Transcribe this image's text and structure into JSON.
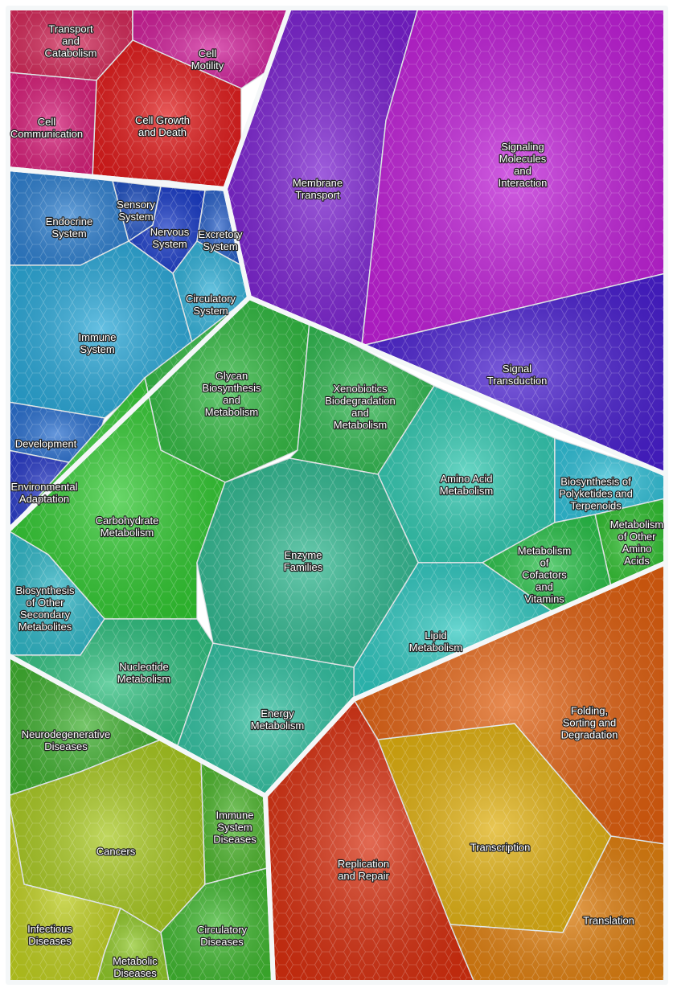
{
  "regions": [
    {
      "lines": [
        "Transport",
        "and",
        "Catabolism"
      ]
    },
    {
      "lines": [
        "Cell",
        "Motility"
      ]
    },
    {
      "lines": [
        "Cell Growth",
        "and Death"
      ]
    },
    {
      "lines": [
        "Cell",
        "Communication"
      ]
    },
    {
      "lines": [
        "Endocrine",
        "System"
      ]
    },
    {
      "lines": [
        "Sensory",
        "System"
      ]
    },
    {
      "lines": [
        "Nervous",
        "System"
      ]
    },
    {
      "lines": [
        "Excretory",
        "System"
      ]
    },
    {
      "lines": [
        "Circulatory",
        "System"
      ]
    },
    {
      "lines": [
        "Immune",
        "System"
      ]
    },
    {
      "lines": [
        "Development"
      ]
    },
    {
      "lines": [
        "Environmental",
        "Adaptation"
      ]
    },
    {
      "lines": [
        "Membrane",
        "Transport"
      ]
    },
    {
      "lines": [
        "Signaling",
        "Molecules",
        "and",
        "Interaction"
      ]
    },
    {
      "lines": [
        "Signal",
        "Transduction"
      ]
    },
    {
      "lines": [
        "Glycan",
        "Biosynthesis",
        "and",
        "Metabolism"
      ]
    },
    {
      "lines": [
        "Xenobiotics",
        "Biodegradation",
        "and",
        "Metabolism"
      ]
    },
    {
      "lines": [
        "Amino Acid",
        "Metabolism"
      ]
    },
    {
      "lines": [
        "Biosynthesis of",
        "Polyketides and",
        "Terpenoids"
      ]
    },
    {
      "lines": [
        "Metabolism",
        "of Other",
        "Amino",
        "Acids"
      ]
    },
    {
      "lines": [
        "Metabolism",
        "of",
        "Cofactors",
        "and",
        "Vitamins"
      ]
    },
    {
      "lines": [
        "Lipid",
        "Metabolism"
      ]
    },
    {
      "lines": [
        "Carbohydrate",
        "Metabolism"
      ]
    },
    {
      "lines": [
        "Biosynthesis",
        "of Other",
        "Secondary",
        "Metabolites"
      ]
    },
    {
      "lines": [
        "Nucleotide",
        "Metabolism"
      ]
    },
    {
      "lines": [
        "Energy",
        "Metabolism"
      ]
    },
    {
      "lines": [
        "Enzyme",
        "Families"
      ]
    },
    {
      "lines": [
        "Neurodegenerative",
        "Diseases"
      ]
    },
    {
      "lines": [
        "Cancers"
      ]
    },
    {
      "lines": [
        "Immune",
        "System",
        "Diseases"
      ]
    },
    {
      "lines": [
        "Infectious",
        "Diseases"
      ]
    },
    {
      "lines": [
        "Circulatory",
        "Diseases"
      ]
    },
    {
      "lines": [
        "Metabolic",
        "Diseases"
      ]
    },
    {
      "lines": [
        "Replication",
        "and Repair"
      ]
    },
    {
      "lines": [
        "Transcription"
      ]
    },
    {
      "lines": [
        "Translation"
      ]
    },
    {
      "lines": [
        "Folding,",
        "Sorting and",
        "Degradation"
      ]
    }
  ]
}
